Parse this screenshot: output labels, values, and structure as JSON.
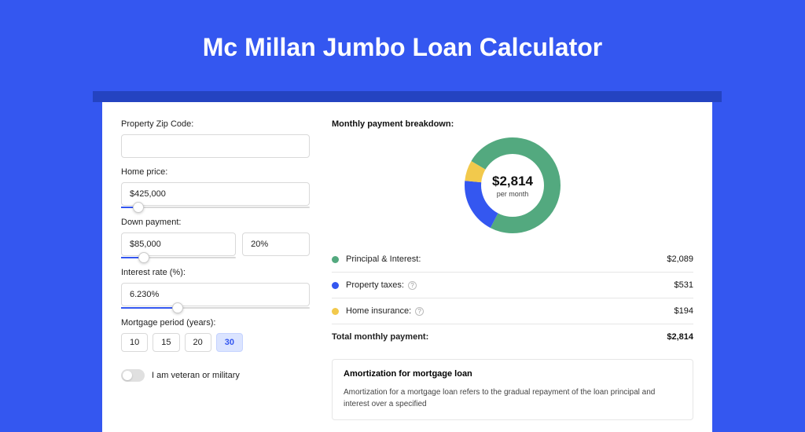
{
  "page": {
    "title": "Mc Millan Jumbo Loan Calculator"
  },
  "colors": {
    "bg": "#3457f0",
    "accent": "#3457f0",
    "pi": "#53a97f",
    "taxes": "#3457f0",
    "insurance": "#f2c94c",
    "border": "#d9d9d9"
  },
  "form": {
    "zip": {
      "label": "Property Zip Code:",
      "value": ""
    },
    "price": {
      "label": "Home price:",
      "value": "$425,000",
      "slider_pct": 9
    },
    "down": {
      "label": "Down payment:",
      "amount": "$85,000",
      "pct": "20%",
      "slider_pct": 20
    },
    "rate": {
      "label": "Interest rate (%):",
      "value": "6.230%",
      "slider_pct": 30
    },
    "period": {
      "label": "Mortgage period (years):",
      "options": [
        "10",
        "15",
        "20",
        "30"
      ],
      "selected": "30"
    },
    "veteran": {
      "label": "I am veteran or military",
      "on": false
    }
  },
  "breakdown": {
    "title": "Monthly payment breakdown:",
    "donut": {
      "amount": "$2,814",
      "sub": "per month",
      "slices": [
        {
          "key": "pi",
          "value": 2089,
          "color": "#53a97f"
        },
        {
          "key": "taxes",
          "value": 531,
          "color": "#3457f0"
        },
        {
          "key": "insurance",
          "value": 194,
          "color": "#f2c94c"
        }
      ],
      "total": 2814,
      "start_angle_deg": -60
    },
    "items": [
      {
        "label": "Principal & Interest:",
        "value": "$2,089",
        "color": "#53a97f",
        "info": false
      },
      {
        "label": "Property taxes:",
        "value": "$531",
        "color": "#3457f0",
        "info": true
      },
      {
        "label": "Home insurance:",
        "value": "$194",
        "color": "#f2c94c",
        "info": true
      }
    ],
    "total": {
      "label": "Total monthly payment:",
      "value": "$2,814"
    }
  },
  "amort": {
    "title": "Amortization for mortgage loan",
    "text": "Amortization for a mortgage loan refers to the gradual repayment of the loan principal and interest over a specified"
  }
}
